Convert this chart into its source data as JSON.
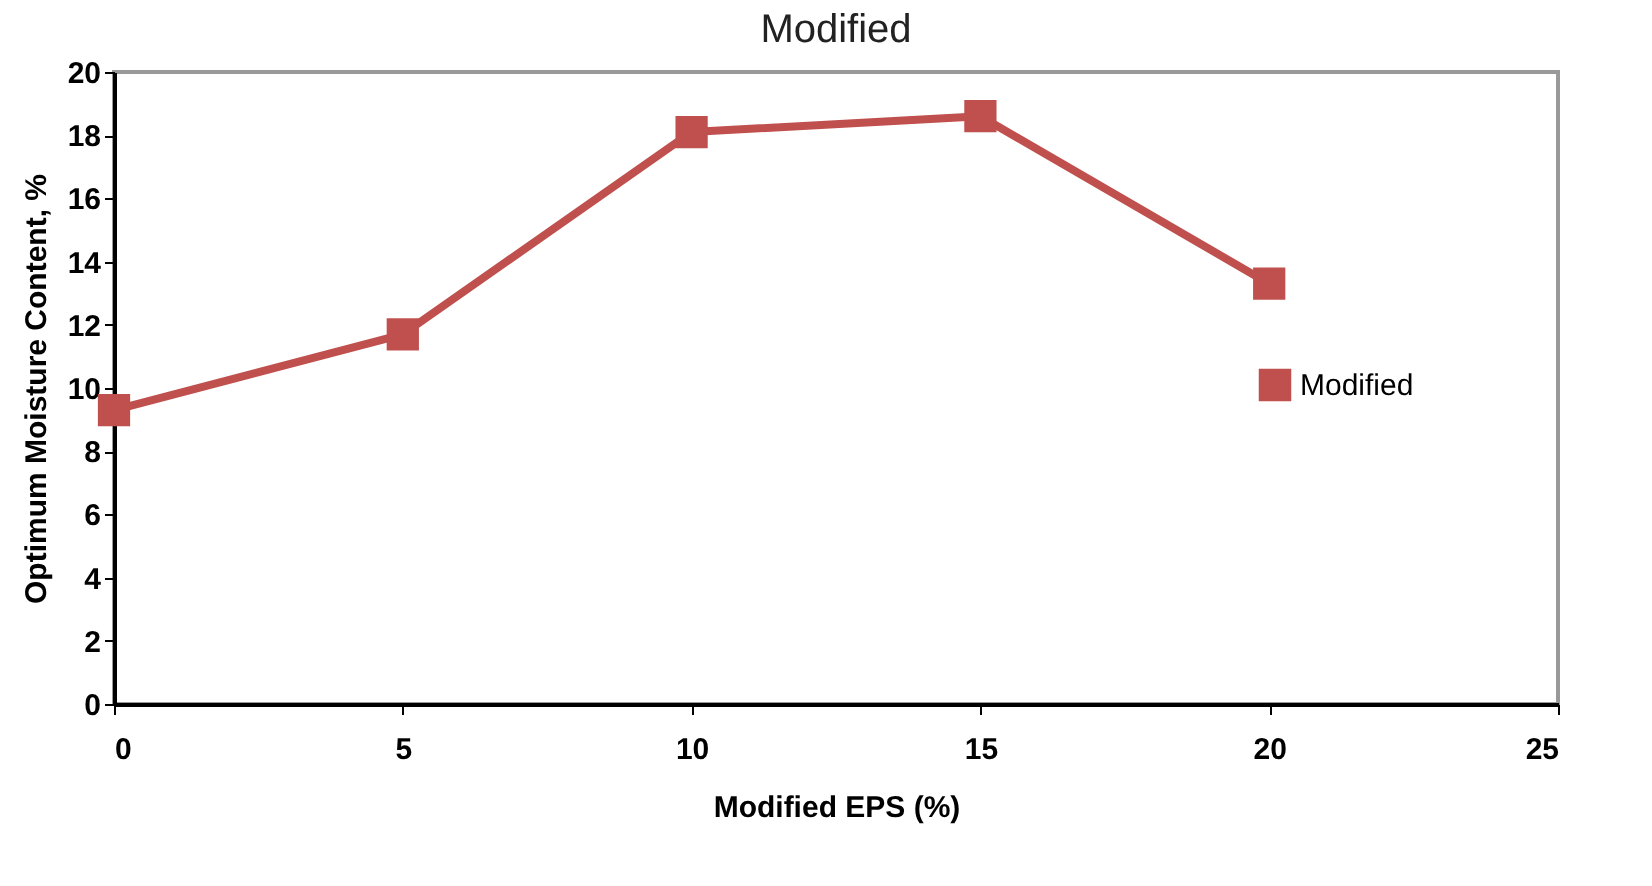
{
  "chart_data": {
    "type": "line",
    "title": "Modified",
    "xlabel": "Modified EPS (%)",
    "ylabel": "Optimum Moisture Content, %",
    "x": [
      0,
      5,
      10,
      15,
      20
    ],
    "series": [
      {
        "name": "Modified",
        "color": "#c0504d",
        "values": [
          9.3,
          11.7,
          18.1,
          18.6,
          13.3
        ]
      }
    ],
    "xlim": [
      0,
      25
    ],
    "xticks": [
      0,
      5,
      10,
      15,
      20,
      25
    ],
    "ylim": [
      0,
      20
    ],
    "yticks": [
      0,
      2,
      4,
      6,
      8,
      10,
      12,
      14,
      16,
      18,
      20
    ],
    "grid": false,
    "legend": "right",
    "marker": "square",
    "line_style": "solid"
  }
}
